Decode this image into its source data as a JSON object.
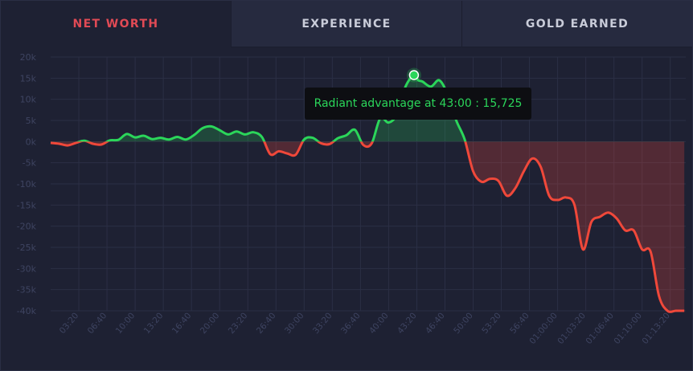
{
  "tabs": [
    {
      "label": "NET WORTH",
      "active": true
    },
    {
      "label": "EXPERIENCE",
      "active": false
    },
    {
      "label": "GOLD EARNED",
      "active": false
    }
  ],
  "tooltip": {
    "text": "Radiant advantage at 43:00 : 15,725"
  },
  "chart_data": {
    "type": "area",
    "title": "",
    "xlabel": "",
    "ylabel": "",
    "xlim": [
      0,
      4510
    ],
    "ylim": [
      -40000,
      20000
    ],
    "grid": true,
    "positive_color": "#2bd65a",
    "negative_color": "#f0483a",
    "x_ticks": [
      {
        "value": 200,
        "label": "03:20"
      },
      {
        "value": 400,
        "label": "06:40"
      },
      {
        "value": 600,
        "label": "10:00"
      },
      {
        "value": 800,
        "label": "13:20"
      },
      {
        "value": 1000,
        "label": "16:40"
      },
      {
        "value": 1200,
        "label": "20:00"
      },
      {
        "value": 1400,
        "label": "23:20"
      },
      {
        "value": 1600,
        "label": "26:40"
      },
      {
        "value": 1800,
        "label": "30:00"
      },
      {
        "value": 2000,
        "label": "33:20"
      },
      {
        "value": 2200,
        "label": "36:40"
      },
      {
        "value": 2400,
        "label": "40:00"
      },
      {
        "value": 2600,
        "label": "43:20"
      },
      {
        "value": 2800,
        "label": "46:40"
      },
      {
        "value": 3000,
        "label": "50:00"
      },
      {
        "value": 3200,
        "label": "53:20"
      },
      {
        "value": 3400,
        "label": "56:40"
      },
      {
        "value": 3600,
        "label": "01:00:00"
      },
      {
        "value": 3800,
        "label": "01:03:20"
      },
      {
        "value": 4000,
        "label": "01:06:40"
      },
      {
        "value": 4200,
        "label": "01:10:00"
      },
      {
        "value": 4400,
        "label": "01:13:20"
      }
    ],
    "y_ticks": [
      {
        "value": 20000,
        "label": "20k"
      },
      {
        "value": 15000,
        "label": "15k"
      },
      {
        "value": 10000,
        "label": "10k"
      },
      {
        "value": 5000,
        "label": "5k"
      },
      {
        "value": 0,
        "label": "0k"
      },
      {
        "value": -5000,
        "label": "-5k"
      },
      {
        "value": -10000,
        "label": "-10k"
      },
      {
        "value": -15000,
        "label": "-15k"
      },
      {
        "value": -20000,
        "label": "-20k"
      },
      {
        "value": -25000,
        "label": "-25k"
      },
      {
        "value": -30000,
        "label": "-30k"
      },
      {
        "value": -35000,
        "label": "-35k"
      },
      {
        "value": -40000,
        "label": "-40k"
      }
    ],
    "series": [
      {
        "x": [
          0,
          60,
          120,
          180,
          240,
          300,
          360,
          420,
          480,
          540,
          600,
          660,
          720,
          780,
          840,
          900,
          960,
          1020,
          1080,
          1140,
          1200,
          1260,
          1320,
          1380,
          1440,
          1500,
          1560,
          1620,
          1680,
          1740,
          1800,
          1860,
          1920,
          1980,
          2040,
          2100,
          2160,
          2220,
          2280,
          2340,
          2400,
          2460,
          2520,
          2580,
          2610,
          2640,
          2700,
          2760,
          2820,
          2880,
          2940,
          3000,
          3060,
          3120,
          3180,
          3240,
          3300,
          3360,
          3420,
          3480,
          3540,
          3600,
          3660,
          3720,
          3780,
          3840,
          3900,
          3960,
          4020,
          4080,
          4140,
          4200,
          4260,
          4320,
          4380,
          4440,
          4500
        ],
        "y": [
          -300,
          -500,
          -900,
          -300,
          200,
          -500,
          -700,
          300,
          400,
          1800,
          1000,
          1400,
          600,
          900,
          500,
          1100,
          500,
          1600,
          3200,
          3600,
          2700,
          1700,
          2400,
          1700,
          2200,
          1100,
          -3000,
          -2300,
          -2800,
          -3100,
          500,
          900,
          -400,
          -600,
          800,
          1500,
          2800,
          -800,
          -400,
          5500,
          4500,
          6500,
          13000,
          15725,
          14500,
          14200,
          13000,
          14500,
          11000,
          5000,
          500,
          -7000,
          -9500,
          -8800,
          -9300,
          -12800,
          -11000,
          -7000,
          -4000,
          -6000,
          -12800,
          -13800,
          -13200,
          -15000,
          -25500,
          -19000,
          -17800,
          -16800,
          -18200,
          -21000,
          -21000,
          -25500,
          -26000,
          -36500,
          -40000,
          -40000,
          -40000
        ]
      }
    ],
    "highlight": {
      "x": 2580,
      "y": 15725
    }
  }
}
